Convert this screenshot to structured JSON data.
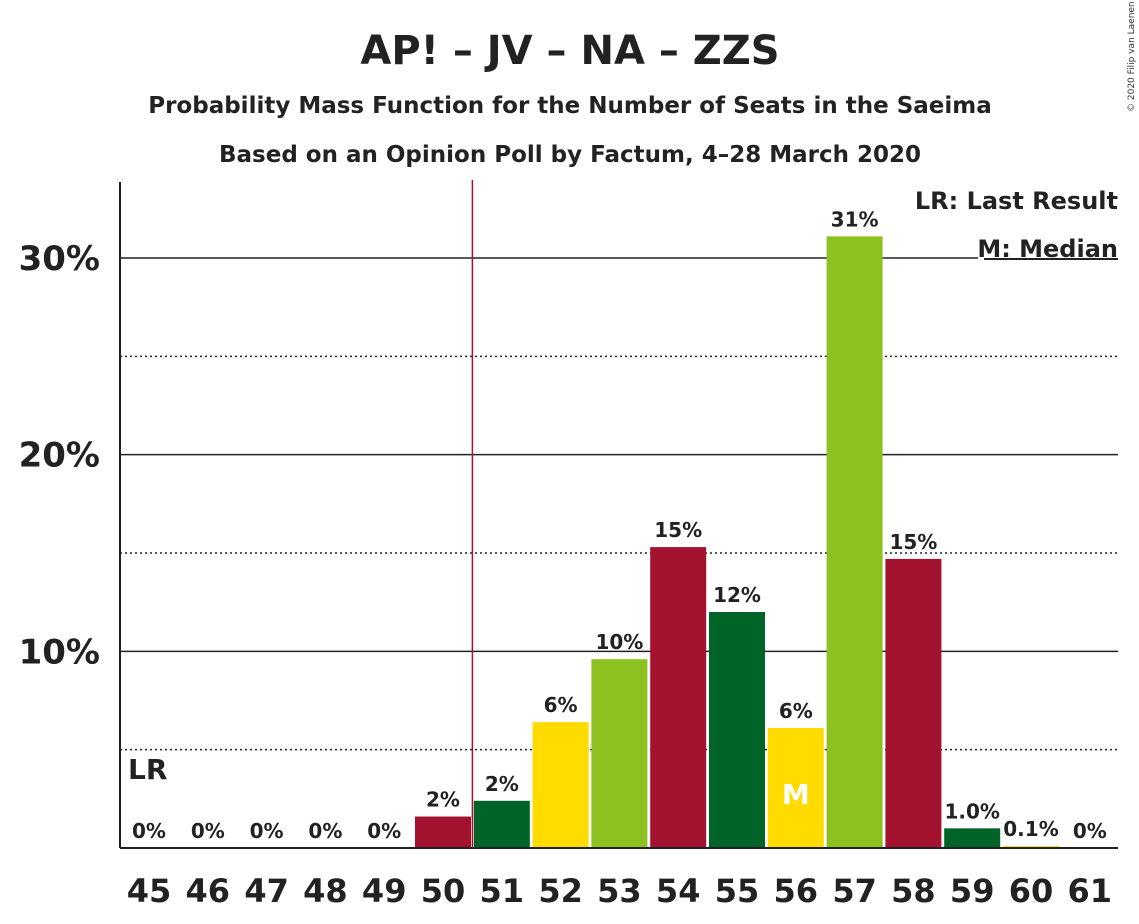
{
  "chart_data": {
    "type": "bar",
    "title": "AP! – JV – NA – ZZS",
    "subtitle": "Probability Mass Function for the Number of Seats in the Saeima",
    "subtitle2": "Based on an Opinion Poll by Factum, 4–28 March 2020",
    "copyright": "© 2020 Filip van Laenen",
    "categories": [
      "45",
      "46",
      "47",
      "48",
      "49",
      "50",
      "51",
      "52",
      "53",
      "54",
      "55",
      "56",
      "57",
      "58",
      "59",
      "60",
      "61"
    ],
    "values": [
      0,
      0,
      0,
      0,
      0,
      1.6,
      2.4,
      6.4,
      9.6,
      15.3,
      12.0,
      6.1,
      31.1,
      14.7,
      1.0,
      0.1,
      0
    ],
    "value_labels": [
      "0%",
      "0%",
      "0%",
      "0%",
      "0%",
      "2%",
      "2%",
      "6%",
      "10%",
      "15%",
      "12%",
      "6%",
      "31%",
      "15%",
      "1.0%",
      "0.1%",
      "0%"
    ],
    "colors": [
      "#A3132F",
      "#A3132F",
      "#A3132F",
      "#A3132F",
      "#A3132F",
      "#A3132F",
      "#006428",
      "#FFDB00",
      "#8CC11F",
      "#A3132F",
      "#006428",
      "#FFDB00",
      "#8CC11F",
      "#A3132F",
      "#006428",
      "#FFDB00",
      "#8CC11F"
    ],
    "ylim": [
      0,
      33.8
    ],
    "yticks": [
      10,
      20,
      30
    ],
    "ytick_labels": [
      "10%",
      "20%",
      "30%"
    ],
    "minor_gridlines": [
      5,
      15,
      25
    ],
    "last_result_seat": "45",
    "last_result_line_after": "50",
    "median_seat": "56",
    "lr_marker": "LR",
    "median_marker": "M",
    "legend": {
      "last_result": "LR: Last Result",
      "median": "M: Median",
      "position": "top-right"
    }
  }
}
